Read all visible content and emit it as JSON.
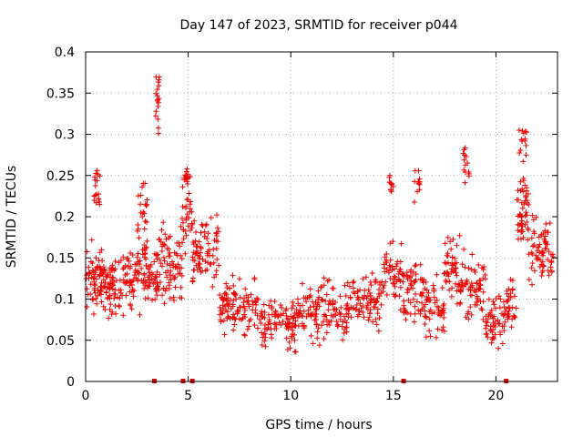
{
  "chart_data": {
    "type": "scatter",
    "title": "Day 147 of 2023, SRMTID for receiver p044",
    "xlabel": "GPS time / hours",
    "ylabel": "SRMTID / TECUs",
    "xlim": [
      0,
      23
    ],
    "ylim": [
      0,
      0.4
    ],
    "x_ticks": [
      0,
      5,
      10,
      15,
      20
    ],
    "x_tick_labels": [
      "0",
      "5",
      "10",
      "15",
      "20"
    ],
    "y_ticks": [
      0,
      0.05,
      0.1,
      0.15,
      0.2,
      0.25,
      0.3,
      0.35,
      0.4
    ],
    "y_tick_labels": [
      "0",
      "0.05",
      "0.1",
      "0.15",
      "0.2",
      "0.25",
      "0.3",
      "0.35",
      "0.4"
    ],
    "grid": true,
    "point_style": "plus",
    "series": [
      {
        "name": "SRMTID",
        "color": "#ee0000",
        "segments": [
          {
            "x0": 0.0,
            "x1": 1.0,
            "base": 0.125,
            "spread": 0.05,
            "n": 80
          },
          {
            "x0": 0.4,
            "x1": 0.7,
            "base": 0.23,
            "spread": 0.04,
            "n": 18
          },
          {
            "x0": 1.0,
            "x1": 2.0,
            "base": 0.115,
            "spread": 0.05,
            "n": 70
          },
          {
            "x0": 2.0,
            "x1": 3.0,
            "base": 0.13,
            "spread": 0.06,
            "n": 70
          },
          {
            "x0": 2.5,
            "x1": 3.0,
            "base": 0.21,
            "spread": 0.05,
            "n": 20
          },
          {
            "x0": 3.0,
            "x1": 3.5,
            "base": 0.12,
            "spread": 0.05,
            "n": 35
          },
          {
            "x0": 3.4,
            "x1": 3.6,
            "base": 0.34,
            "spread": 0.05,
            "n": 18
          },
          {
            "x0": 3.5,
            "x1": 4.7,
            "base": 0.14,
            "spread": 0.07,
            "n": 80
          },
          {
            "x0": 4.7,
            "x1": 5.2,
            "base": 0.2,
            "spread": 0.06,
            "n": 30
          },
          {
            "x0": 4.8,
            "x1": 5.1,
            "base": 0.25,
            "spread": 0.02,
            "n": 14
          },
          {
            "x0": 5.2,
            "x1": 6.5,
            "base": 0.16,
            "spread": 0.06,
            "n": 80
          },
          {
            "x0": 6.5,
            "x1": 8.5,
            "base": 0.09,
            "spread": 0.05,
            "n": 110
          },
          {
            "x0": 8.5,
            "x1": 10.5,
            "base": 0.07,
            "spread": 0.045,
            "n": 110
          },
          {
            "x0": 10.5,
            "x1": 13.0,
            "base": 0.085,
            "spread": 0.05,
            "n": 130
          },
          {
            "x0": 13.0,
            "x1": 14.5,
            "base": 0.1,
            "spread": 0.05,
            "n": 80
          },
          {
            "x0": 14.5,
            "x1": 15.5,
            "base": 0.13,
            "spread": 0.05,
            "n": 55
          },
          {
            "x0": 14.8,
            "x1": 15.0,
            "base": 0.24,
            "spread": 0.02,
            "n": 10
          },
          {
            "x0": 15.5,
            "x1": 16.5,
            "base": 0.11,
            "spread": 0.06,
            "n": 60
          },
          {
            "x0": 16.0,
            "x1": 16.3,
            "base": 0.24,
            "spread": 0.03,
            "n": 12
          },
          {
            "x0": 16.5,
            "x1": 17.5,
            "base": 0.09,
            "spread": 0.05,
            "n": 55
          },
          {
            "x0": 17.5,
            "x1": 18.5,
            "base": 0.13,
            "spread": 0.06,
            "n": 60
          },
          {
            "x0": 18.4,
            "x1": 18.7,
            "base": 0.27,
            "spread": 0.04,
            "n": 14
          },
          {
            "x0": 18.5,
            "x1": 19.5,
            "base": 0.11,
            "spread": 0.06,
            "n": 55
          },
          {
            "x0": 19.5,
            "x1": 20.5,
            "base": 0.075,
            "spread": 0.04,
            "n": 55
          },
          {
            "x0": 20.5,
            "x1": 21.0,
            "base": 0.1,
            "spread": 0.05,
            "n": 30
          },
          {
            "x0": 21.0,
            "x1": 21.6,
            "base": 0.21,
            "spread": 0.07,
            "n": 50
          },
          {
            "x0": 21.1,
            "x1": 21.5,
            "base": 0.29,
            "spread": 0.03,
            "n": 14
          },
          {
            "x0": 21.6,
            "x1": 22.8,
            "base": 0.16,
            "spread": 0.06,
            "n": 70
          }
        ]
      }
    ],
    "baseline_markers_x": [
      3.35,
      4.75,
      5.2,
      15.5,
      20.5
    ]
  }
}
